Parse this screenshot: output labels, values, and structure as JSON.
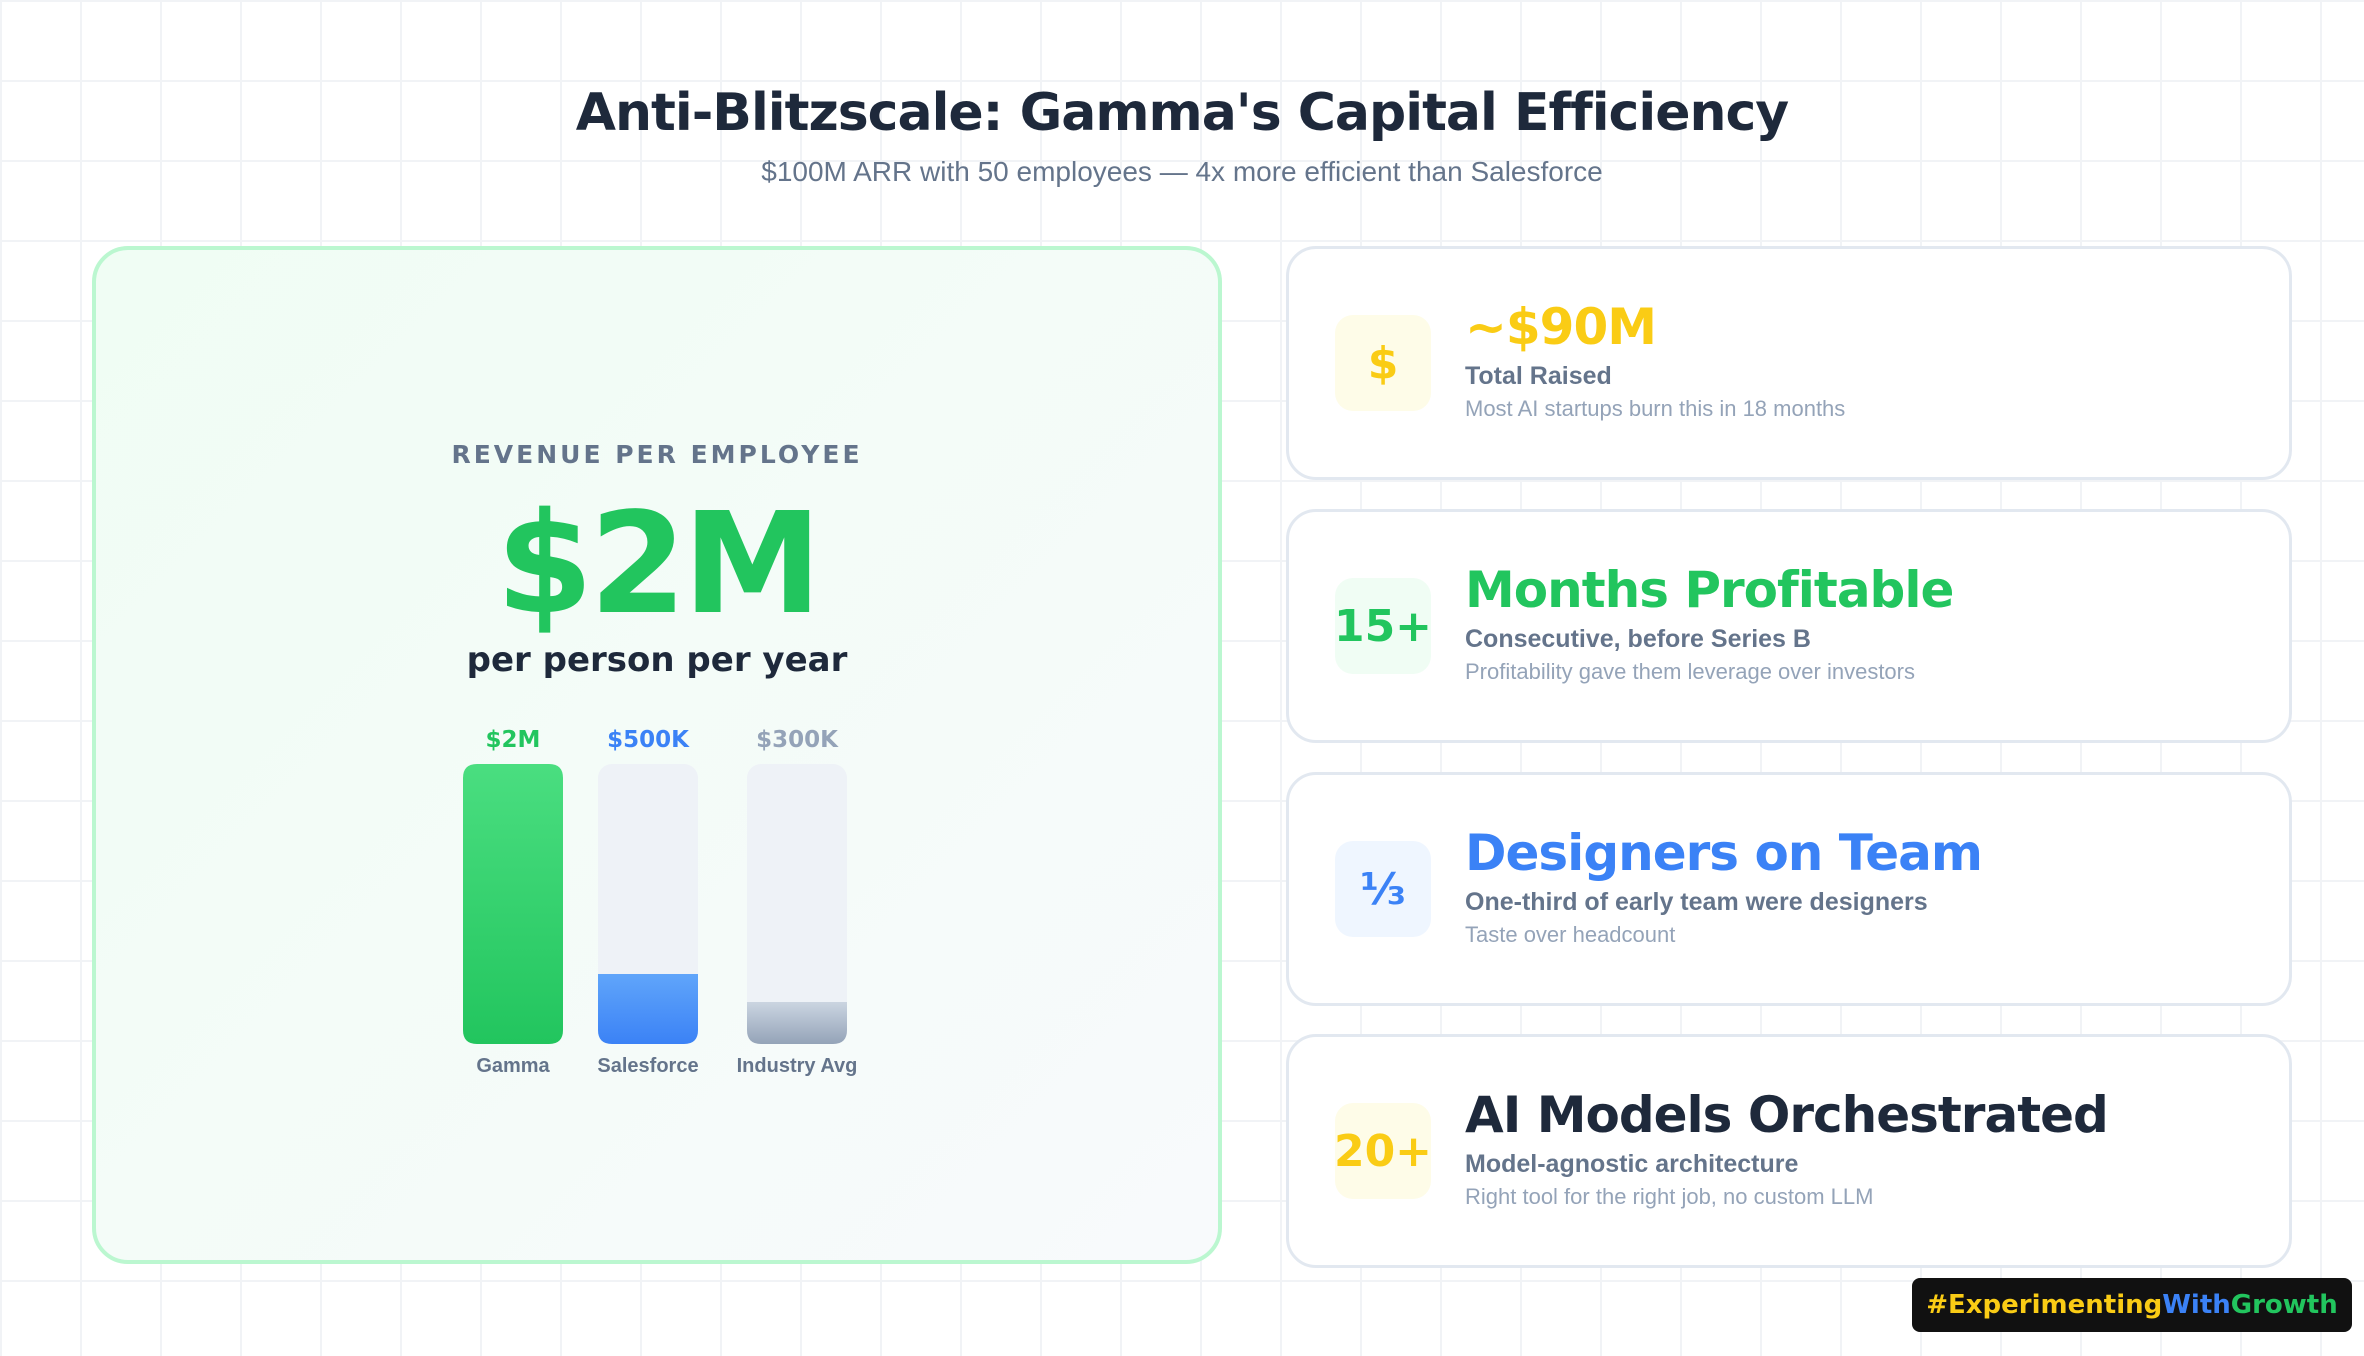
{
  "header": {
    "title": "Anti-Blitzscale: Gamma's Capital Efficiency",
    "subtitle": "$100M ARR with 50 employees — 4x more efficient than Salesforce"
  },
  "left_panel": {
    "label": "REVENUE PER EMPLOYEE",
    "value": "$2M",
    "unit": "per person per year"
  },
  "chart_data": {
    "type": "bar",
    "categories": [
      "Gamma",
      "Salesforce",
      "Industry Avg"
    ],
    "values": [
      2000000,
      500000,
      300000
    ],
    "value_labels": [
      "$2M",
      "$500K",
      "$300K"
    ],
    "colors": [
      "#22c55e",
      "#3b82f6",
      "#94a3b8"
    ],
    "ylim": [
      0,
      2000000
    ],
    "title": "",
    "xlabel": "",
    "ylabel": "",
    "grid": false
  },
  "cards": [
    {
      "icon": "$",
      "icon_name": "dollar-icon",
      "value": "~$90M",
      "label": "Total Raised",
      "note": "Most AI startups burn this in 18 months",
      "accent": "#facc15",
      "icon_bg": "#fefce8"
    },
    {
      "icon": "15+",
      "icon_name": "count-badge",
      "value": "Months Profitable",
      "label": "Consecutive, before Series B",
      "note": "Profitability gave them leverage over investors",
      "accent": "#22c55e",
      "icon_bg": "#f0fdf4"
    },
    {
      "icon": "⅓",
      "icon_name": "fraction-badge",
      "value": "Designers on Team",
      "label": "One-third of early team were designers",
      "note": "Taste over headcount",
      "accent": "#3b82f6",
      "icon_bg": "#eff6ff"
    },
    {
      "icon": "20+",
      "icon_name": "count-badge",
      "value": "AI Models Orchestrated",
      "label": "Model-agnostic architecture",
      "note": "Right tool for the right job, no custom LLM",
      "accent": "#1e293b",
      "icon_accent": "#facc15",
      "icon_bg": "#fefce8"
    }
  ],
  "tag": {
    "part1": "#Experimenting",
    "part2": "With",
    "part3": "Growth",
    "color1": "#facc15",
    "color2": "#3b82f6",
    "color3": "#22c55e"
  }
}
